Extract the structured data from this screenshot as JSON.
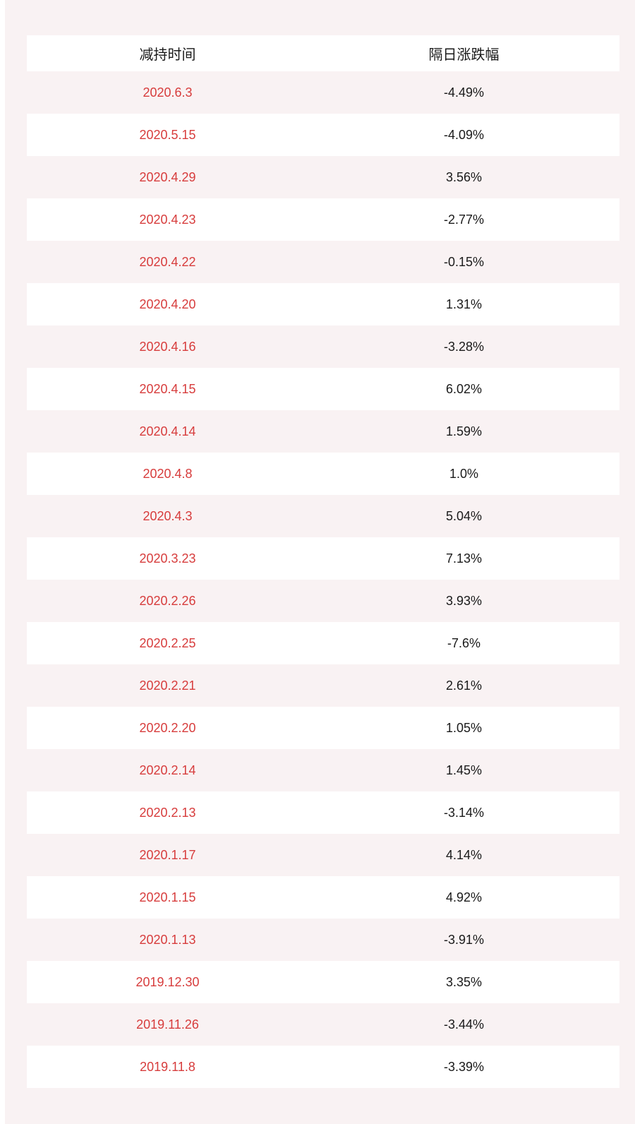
{
  "colors": {
    "page_bg": "#f9f2f3",
    "row_pink": "#f9f2f3",
    "row_white": "#ffffff",
    "date_red": "#d73c3c",
    "text_dark": "#1a1a1a"
  },
  "table": {
    "header": {
      "date_label": "减持时间",
      "change_label": "隔日涨跌幅"
    }
  },
  "chart_data": {
    "type": "table",
    "columns": [
      "减持时间",
      "隔日涨跌幅"
    ],
    "rows": [
      [
        "2020.6.3",
        "-4.49%"
      ],
      [
        "2020.5.15",
        "-4.09%"
      ],
      [
        "2020.4.29",
        "3.56%"
      ],
      [
        "2020.4.23",
        "-2.77%"
      ],
      [
        "2020.4.22",
        "-0.15%"
      ],
      [
        "2020.4.20",
        "1.31%"
      ],
      [
        "2020.4.16",
        "-3.28%"
      ],
      [
        "2020.4.15",
        "6.02%"
      ],
      [
        "2020.4.14",
        "1.59%"
      ],
      [
        "2020.4.8",
        "1.0%"
      ],
      [
        "2020.4.3",
        "5.04%"
      ],
      [
        "2020.3.23",
        "7.13%"
      ],
      [
        "2020.2.26",
        "3.93%"
      ],
      [
        "2020.2.25",
        "-7.6%"
      ],
      [
        "2020.2.21",
        "2.61%"
      ],
      [
        "2020.2.20",
        "1.05%"
      ],
      [
        "2020.2.14",
        "1.45%"
      ],
      [
        "2020.2.13",
        "-3.14%"
      ],
      [
        "2020.1.17",
        "4.14%"
      ],
      [
        "2020.1.15",
        "4.92%"
      ],
      [
        "2020.1.13",
        "-3.91%"
      ],
      [
        "2019.12.30",
        "3.35%"
      ],
      [
        "2019.11.26",
        "-3.44%"
      ],
      [
        "2019.11.8",
        "-3.39%"
      ]
    ]
  }
}
